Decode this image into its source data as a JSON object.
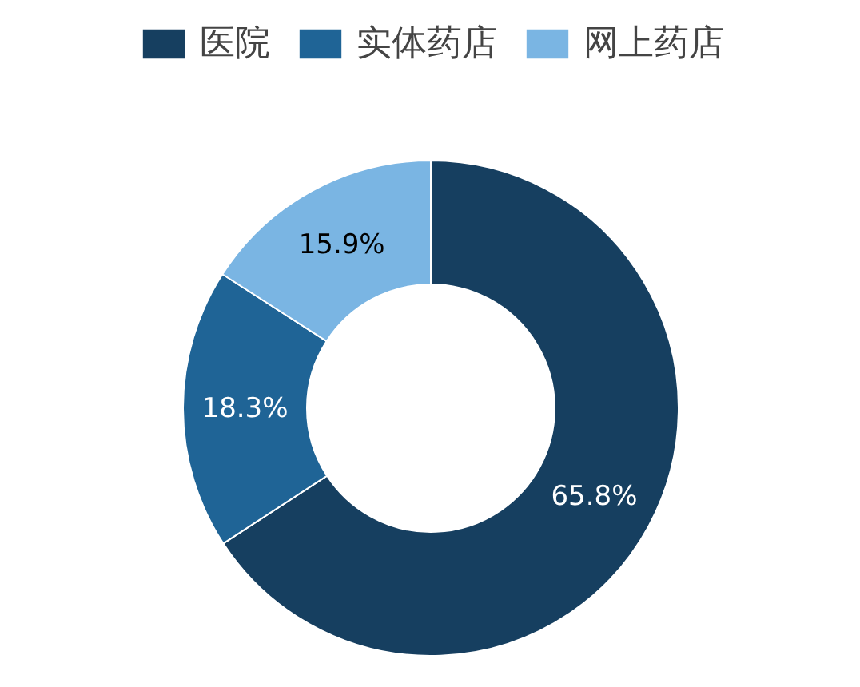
{
  "chart_data": {
    "type": "donut",
    "categories": [
      "医院",
      "实体药店",
      "网上药店"
    ],
    "values": [
      65.8,
      18.3,
      15.9
    ],
    "colors": [
      "#163f60",
      "#1f6496",
      "#7ab5e3"
    ],
    "value_labels": [
      "65.8%",
      "18.3%",
      "15.9%"
    ],
    "legend": "top"
  }
}
